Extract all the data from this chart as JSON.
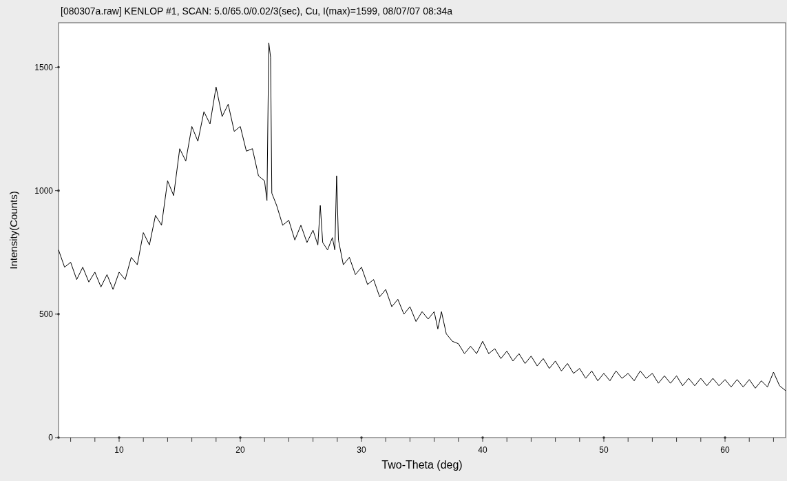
{
  "chart_data": {
    "type": "line",
    "title": "[080307a.raw] KENLOP #1, SCAN: 5.0/65.0/0.02/3(sec), Cu, I(max)=1599, 08/07/07 08:34a",
    "xlabel": "Two-Theta (deg)",
    "ylabel": "Intensity(Counts)",
    "xlim": [
      5,
      65
    ],
    "ylim": [
      0,
      1680
    ],
    "xticks": [
      {
        "value": 6,
        "label": null
      },
      {
        "value": 8,
        "label": null
      },
      10,
      {
        "value": 12,
        "label": null
      },
      {
        "value": 14,
        "label": null
      },
      {
        "value": 16,
        "label": null
      },
      {
        "value": 18,
        "label": null
      },
      20,
      {
        "value": 22,
        "label": null
      },
      {
        "value": 24,
        "label": null
      },
      {
        "value": 26,
        "label": null
      },
      {
        "value": 28,
        "label": null
      },
      30,
      {
        "value": 32,
        "label": null
      },
      {
        "value": 34,
        "label": null
      },
      {
        "value": 36,
        "label": null
      },
      {
        "value": 38,
        "label": null
      },
      40,
      {
        "value": 42,
        "label": null
      },
      {
        "value": 44,
        "label": null
      },
      {
        "value": 46,
        "label": null
      },
      {
        "value": 48,
        "label": null
      },
      50,
      {
        "value": 52,
        "label": null
      },
      {
        "value": 54,
        "label": null
      },
      {
        "value": 56,
        "label": null
      },
      {
        "value": 58,
        "label": null
      },
      60,
      {
        "value": 62,
        "label": null
      },
      {
        "value": 64,
        "label": null
      }
    ],
    "yticks": [
      0,
      500,
      1000,
      1500
    ],
    "grid": false,
    "marker": "none",
    "line_style": "solid",
    "series": [
      {
        "color": "#000000",
        "x": [
          5.0,
          5.5,
          6.0,
          6.5,
          7.0,
          7.5,
          8.0,
          8.5,
          9.0,
          9.5,
          10.0,
          10.5,
          11.0,
          11.5,
          12.0,
          12.5,
          13.0,
          13.5,
          14.0,
          14.5,
          15.0,
          15.5,
          16.0,
          16.5,
          17.0,
          17.5,
          18.0,
          18.5,
          19.0,
          19.5,
          20.0,
          20.5,
          21.0,
          21.5,
          22.0,
          22.2,
          22.35,
          22.5,
          22.6,
          23.0,
          23.5,
          24.0,
          24.5,
          25.0,
          25.5,
          26.0,
          26.4,
          26.6,
          26.8,
          27.2,
          27.6,
          27.8,
          27.95,
          28.1,
          28.5,
          29.0,
          29.5,
          30.0,
          30.5,
          31.0,
          31.5,
          32.0,
          32.5,
          33.0,
          33.5,
          34.0,
          34.5,
          35.0,
          35.5,
          36.0,
          36.3,
          36.6,
          37.0,
          37.5,
          38.0,
          38.5,
          39.0,
          39.5,
          40.0,
          40.5,
          41.0,
          41.5,
          42.0,
          42.5,
          43.0,
          43.5,
          44.0,
          44.5,
          45.0,
          45.5,
          46.0,
          46.5,
          47.0,
          47.5,
          48.0,
          48.5,
          49.0,
          49.5,
          50.0,
          50.5,
          51.0,
          51.5,
          52.0,
          52.5,
          53.0,
          53.5,
          54.0,
          54.5,
          55.0,
          55.5,
          56.0,
          56.5,
          57.0,
          57.5,
          58.0,
          58.5,
          59.0,
          59.5,
          60.0,
          60.5,
          61.0,
          61.5,
          62.0,
          62.5,
          63.0,
          63.5,
          64.0,
          64.5,
          65.0
        ],
        "values": [
          760,
          690,
          710,
          640,
          690,
          630,
          670,
          610,
          660,
          600,
          670,
          640,
          730,
          700,
          830,
          780,
          900,
          860,
          1040,
          980,
          1170,
          1120,
          1260,
          1200,
          1320,
          1270,
          1420,
          1300,
          1350,
          1240,
          1260,
          1160,
          1170,
          1060,
          1040,
          960,
          1599,
          1540,
          990,
          940,
          860,
          880,
          800,
          860,
          790,
          840,
          780,
          940,
          790,
          760,
          810,
          760,
          1060,
          800,
          700,
          730,
          660,
          690,
          620,
          640,
          570,
          600,
          530,
          560,
          500,
          530,
          470,
          510,
          480,
          510,
          440,
          510,
          420,
          390,
          380,
          340,
          370,
          340,
          390,
          340,
          360,
          320,
          350,
          310,
          340,
          300,
          330,
          290,
          320,
          280,
          310,
          270,
          300,
          260,
          280,
          240,
          270,
          230,
          260,
          230,
          270,
          240,
          260,
          230,
          270,
          240,
          260,
          220,
          250,
          220,
          250,
          210,
          240,
          210,
          240,
          210,
          240,
          210,
          235,
          205,
          235,
          205,
          235,
          200,
          230,
          205,
          265,
          210,
          190
        ]
      }
    ]
  }
}
